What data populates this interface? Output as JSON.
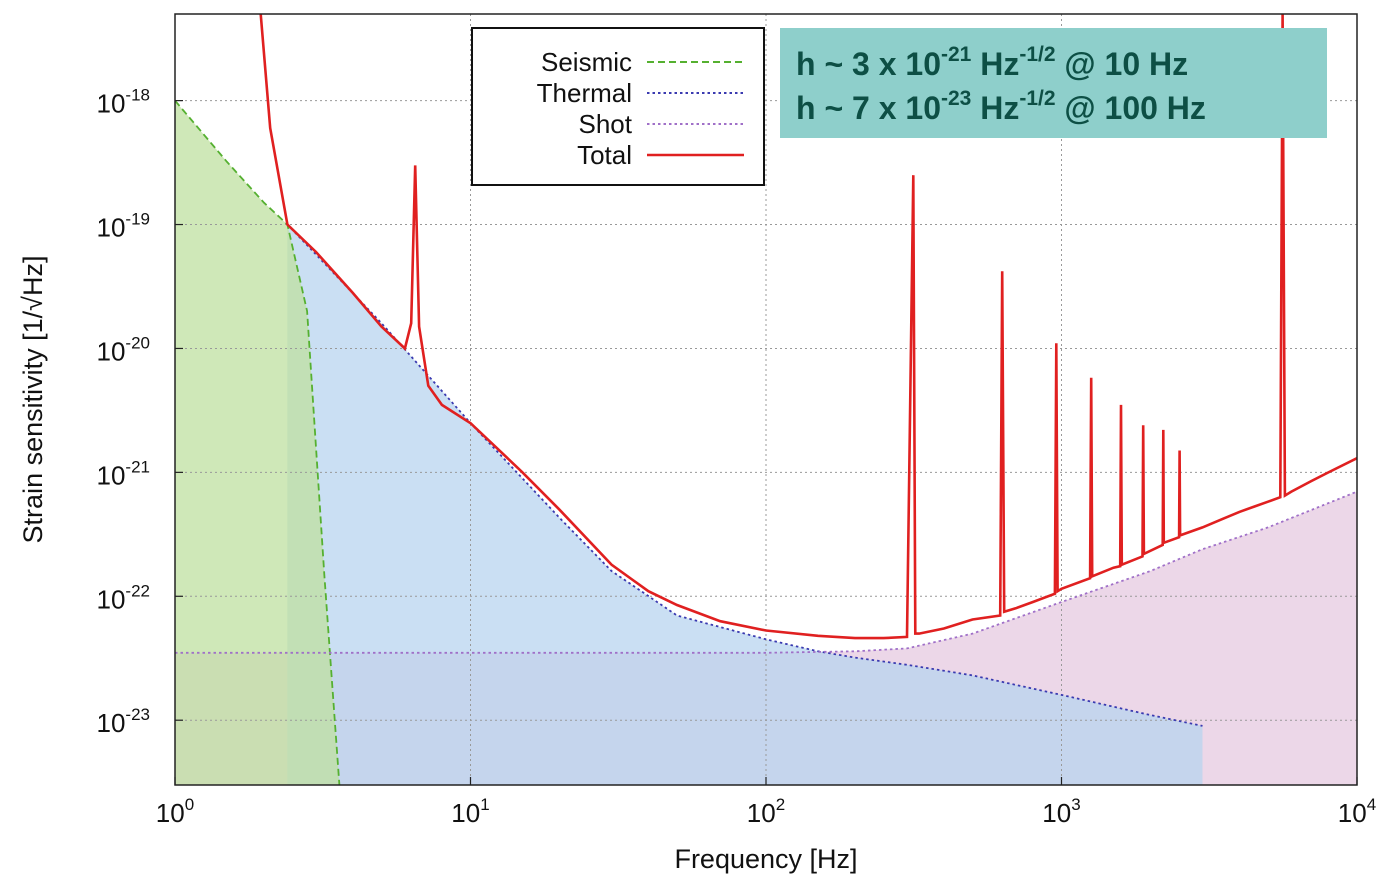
{
  "chart_data": {
    "type": "line",
    "title": "",
    "xlabel": "Frequency [Hz]",
    "ylabel": "Strain sensitivity [1/√Hz]",
    "x_scale": "log",
    "y_scale": "log",
    "xlim": [
      1,
      10000
    ],
    "ylim": [
      3e-24,
      5e-18
    ],
    "grid": true,
    "legend_position": "top-center",
    "x_ticks": [
      {
        "base": "10",
        "exp": "0"
      },
      {
        "base": "10",
        "exp": "1"
      },
      {
        "base": "10",
        "exp": "2"
      },
      {
        "base": "10",
        "exp": "3"
      },
      {
        "base": "10",
        "exp": "4"
      }
    ],
    "y_ticks": [
      {
        "base": "10",
        "exp": "-18"
      },
      {
        "base": "10",
        "exp": "-19"
      },
      {
        "base": "10",
        "exp": "-20"
      },
      {
        "base": "10",
        "exp": "-21"
      },
      {
        "base": "10",
        "exp": "-22"
      },
      {
        "base": "10",
        "exp": "-23"
      }
    ],
    "series": [
      {
        "name": "Seismic",
        "color": "#55b030",
        "dash": "dashed",
        "x": [
          1.0,
          1.5,
          2.0,
          2.4,
          2.8,
          3.2,
          3.6
        ],
        "y": [
          1e-18,
          3.2e-19,
          1.5e-19,
          1e-19,
          2e-20,
          1.5e-22,
          3e-24
        ]
      },
      {
        "name": "Thermal",
        "color": "#3a3ab0",
        "dash": "dotted",
        "x": [
          2.4,
          5,
          10,
          20,
          30,
          50,
          100,
          150,
          200,
          300,
          500,
          1000,
          2000,
          3000
        ],
        "y": [
          1e-19,
          1.6e-20,
          2.5e-21,
          4.3e-22,
          1.6e-22,
          7e-23,
          4.5e-23,
          3.6e-23,
          3.2e-23,
          2.8e-23,
          2.3e-23,
          1.6e-23,
          1.1e-23,
          9e-24
        ]
      },
      {
        "name": "Shot",
        "color": "#a070c8",
        "dash": "dotted",
        "x": [
          1.0,
          100,
          200,
          300,
          500,
          1000,
          2000,
          3000,
          5000,
          10000
        ],
        "y": [
          3.5e-23,
          3.5e-23,
          3.6e-23,
          3.8e-23,
          5e-23,
          9e-23,
          1.6e-22,
          2.4e-22,
          3.6e-22,
          7e-22
        ]
      },
      {
        "name": "Total",
        "color": "#e02020",
        "dash": "solid",
        "x": [
          1.95,
          2.1,
          2.4,
          3,
          4,
          5,
          6,
          6.3,
          6.5,
          6.7,
          7.2,
          8,
          10,
          15,
          20,
          30,
          40,
          50,
          70,
          100,
          150,
          200,
          250,
          300,
          315,
          320,
          330,
          400,
          500,
          620,
          630,
          640,
          700,
          800,
          950,
          960,
          970,
          1000,
          1250,
          1260,
          1270,
          1500,
          1580,
          1590,
          1600,
          1880,
          1890,
          1900,
          2200,
          2210,
          2220,
          2500,
          2510,
          2520,
          3000,
          3500,
          4000,
          4500,
          5000,
          5500,
          5600,
          5700,
          6000,
          7000,
          8000,
          10000
        ],
        "y": [
          5e-18,
          6e-19,
          1e-19,
          6e-20,
          2.8e-20,
          1.5e-20,
          1e-20,
          1.6e-20,
          3e-19,
          1.5e-20,
          5e-21,
          3.5e-21,
          2.5e-21,
          1e-21,
          5e-22,
          1.8e-22,
          1.1e-22,
          8.5e-23,
          6.3e-23,
          5.3e-23,
          4.8e-23,
          4.6e-23,
          4.6e-23,
          4.7e-23,
          2.5e-19,
          5e-23,
          5e-23,
          5.5e-23,
          6.5e-23,
          7e-23,
          4.2e-20,
          7.5e-23,
          8e-23,
          9e-23,
          1.05e-22,
          1.1e-20,
          1.1e-22,
          1.15e-22,
          1.4e-22,
          5.8e-21,
          1.45e-22,
          1.7e-22,
          1.75e-22,
          3.5e-21,
          1.8e-22,
          2.1e-22,
          2.4e-21,
          2.2e-22,
          2.6e-22,
          2.2e-21,
          2.7e-22,
          3e-22,
          1.5e-21,
          3.1e-22,
          3.6e-22,
          4.2e-22,
          4.8e-22,
          5.3e-22,
          5.8e-22,
          6.3e-22,
          5e-18,
          6.5e-22,
          7e-22,
          8.5e-22,
          1e-21,
          1.3e-21
        ]
      }
    ],
    "annotations": [
      {
        "pre": "h ~ 3 x 10",
        "exp": "-21",
        "unit": " Hz",
        "unit_exp": "-1/2",
        "post": "  @ 10 Hz"
      },
      {
        "pre": "h ~ 7 x 10",
        "exp": "-23",
        "unit": " Hz",
        "unit_exp": "-1/2",
        "post": "  @ 100 Hz"
      }
    ],
    "colors": {
      "seismic_fill": "#bfe0a0",
      "thermal_fill": "#b8d4ef",
      "shot_fill": "#e6c9e0",
      "annotation_bg": "#8ecfcb"
    }
  }
}
